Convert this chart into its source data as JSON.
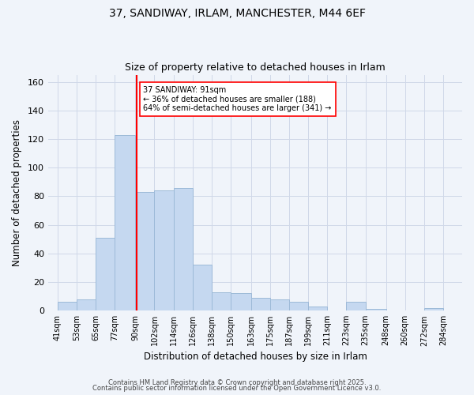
{
  "title1": "37, SANDIWAY, IRLAM, MANCHESTER, M44 6EF",
  "title2": "Size of property relative to detached houses in Irlam",
  "xlabel": "Distribution of detached houses by size in Irlam",
  "ylabel": "Number of detached properties",
  "bar_left_edges": [
    41,
    53,
    65,
    77,
    90,
    102,
    114,
    126,
    138,
    150,
    163,
    175,
    187,
    199,
    211,
    223,
    235,
    248,
    260,
    272
  ],
  "bar_widths": [
    12,
    12,
    12,
    13,
    12,
    12,
    12,
    12,
    12,
    13,
    12,
    12,
    12,
    12,
    12,
    12,
    13,
    12,
    12,
    12
  ],
  "bar_heights": [
    6,
    8,
    51,
    123,
    83,
    84,
    86,
    32,
    13,
    12,
    9,
    8,
    6,
    3,
    0,
    6,
    1,
    0,
    0,
    2
  ],
  "bar_color": "#c5d8f0",
  "bar_edge_color": "#9dbad8",
  "vline_x": 91,
  "vline_color": "red",
  "annotation_title": "37 SANDIWAY: 91sqm",
  "annotation_line1": "← 36% of detached houses are smaller (188)",
  "annotation_line2": "64% of semi-detached houses are larger (341) →",
  "annotation_box_color": "white",
  "annotation_box_edge": "red",
  "xlim": [
    35,
    296
  ],
  "ylim": [
    0,
    165
  ],
  "yticks": [
    0,
    20,
    40,
    60,
    80,
    100,
    120,
    140,
    160
  ],
  "xtick_labels": [
    "41sqm",
    "53sqm",
    "65sqm",
    "77sqm",
    "90sqm",
    "102sqm",
    "114sqm",
    "126sqm",
    "138sqm",
    "150sqm",
    "163sqm",
    "175sqm",
    "187sqm",
    "199sqm",
    "211sqm",
    "223sqm",
    "235sqm",
    "248sqm",
    "260sqm",
    "272sqm",
    "284sqm"
  ],
  "xtick_positions": [
    41,
    53,
    65,
    77,
    90,
    102,
    114,
    126,
    138,
    150,
    163,
    175,
    187,
    199,
    211,
    223,
    235,
    248,
    260,
    272,
    284
  ],
  "grid_color": "#d0d8e8",
  "bg_color": "#f0f4fa",
  "footer1": "Contains HM Land Registry data © Crown copyright and database right 2025.",
  "footer2": "Contains public sector information licensed under the Open Government Licence v3.0."
}
